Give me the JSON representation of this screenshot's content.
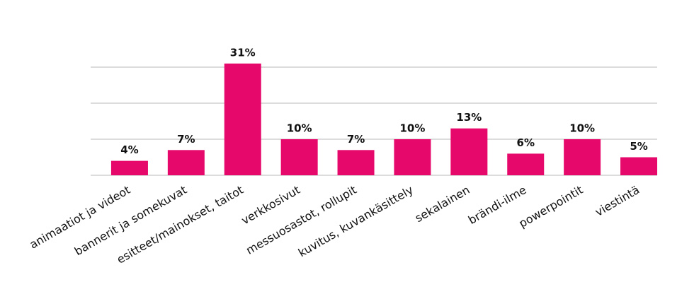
{
  "chart_data": {
    "type": "bar",
    "categories": [
      "animaatiot ja videot",
      "bannerit ja somekuvat",
      "esitteet/mainokset, taitot",
      "verkkosivut",
      "messuosastot, rollupit",
      "kuvitus, kuvankäsittely",
      "sekalainen",
      "brändi-ilme",
      "powerpointit",
      "viestintä"
    ],
    "values": [
      4,
      7,
      31,
      10,
      7,
      10,
      13,
      6,
      10,
      5
    ],
    "value_labels": [
      "4%",
      "7%",
      "31%",
      "10%",
      "7%",
      "10%",
      "13%",
      "6%",
      "10%",
      "5%"
    ],
    "color": "#e6096b",
    "ylim": [
      0,
      30
    ],
    "yticks": [
      0,
      10,
      20,
      30
    ],
    "grid": true
  }
}
